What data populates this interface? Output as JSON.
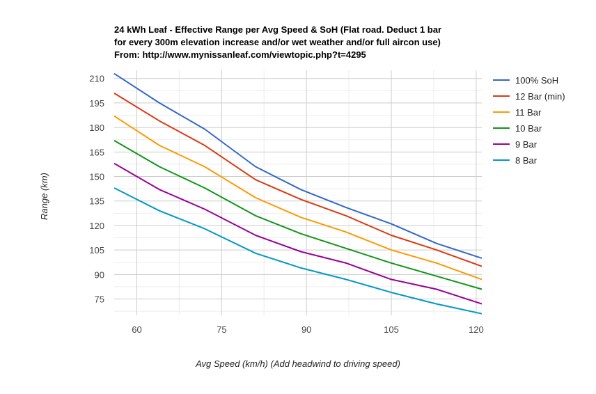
{
  "chart_data": {
    "type": "line",
    "title_lines": [
      "24 kWh Leaf - Effective Range per Avg Speed & SoH (Flat road. Deduct 1 bar",
      "for every 300m elevation increase and/or wet weather and/or full aircon use)",
      "From: http://www.mynissanleaf.com/viewtopic.php?t=4295"
    ],
    "xlabel": "Avg Speed (km/h) (Add headwind to driving speed)",
    "ylabel": "Range (km)",
    "xlim": [
      56,
      121
    ],
    "ylim": [
      65,
      215
    ],
    "xticks": [
      60,
      75,
      90,
      105,
      120
    ],
    "yticks": [
      75,
      90,
      105,
      120,
      135,
      150,
      165,
      180,
      195,
      210
    ],
    "xtick_labels": [
      "60",
      "75",
      "90",
      "105",
      "120"
    ],
    "ytick_labels": [
      "75",
      "90",
      "105",
      "120",
      "135",
      "150",
      "165",
      "180",
      "195",
      "210"
    ],
    "legend_position": "right",
    "x": [
      56,
      64,
      72,
      81,
      89,
      97,
      105,
      113,
      121
    ],
    "series": [
      {
        "name": "100% SoH",
        "color": "#3366cc",
        "values": [
          213,
          195,
          179,
          156,
          142,
          131,
          121,
          109,
          100
        ]
      },
      {
        "name": "12 Bar (min)",
        "color": "#dc3912",
        "values": [
          201,
          184,
          169,
          148,
          136,
          126,
          114,
          105,
          95
        ]
      },
      {
        "name": "11 Bar",
        "color": "#ff9900",
        "values": [
          187,
          169,
          156,
          137,
          125,
          116,
          105,
          97,
          87
        ]
      },
      {
        "name": "10 Bar",
        "color": "#109618",
        "values": [
          172,
          156,
          143,
          126,
          115,
          106,
          97,
          89,
          81
        ]
      },
      {
        "name": "9 Bar",
        "color": "#990099",
        "values": [
          158,
          142,
          130,
          114,
          104,
          97,
          87,
          81,
          72
        ]
      },
      {
        "name": "8 Bar",
        "color": "#0099c6",
        "values": [
          143,
          129,
          118,
          103,
          94,
          87,
          79,
          72,
          66
        ]
      }
    ]
  }
}
